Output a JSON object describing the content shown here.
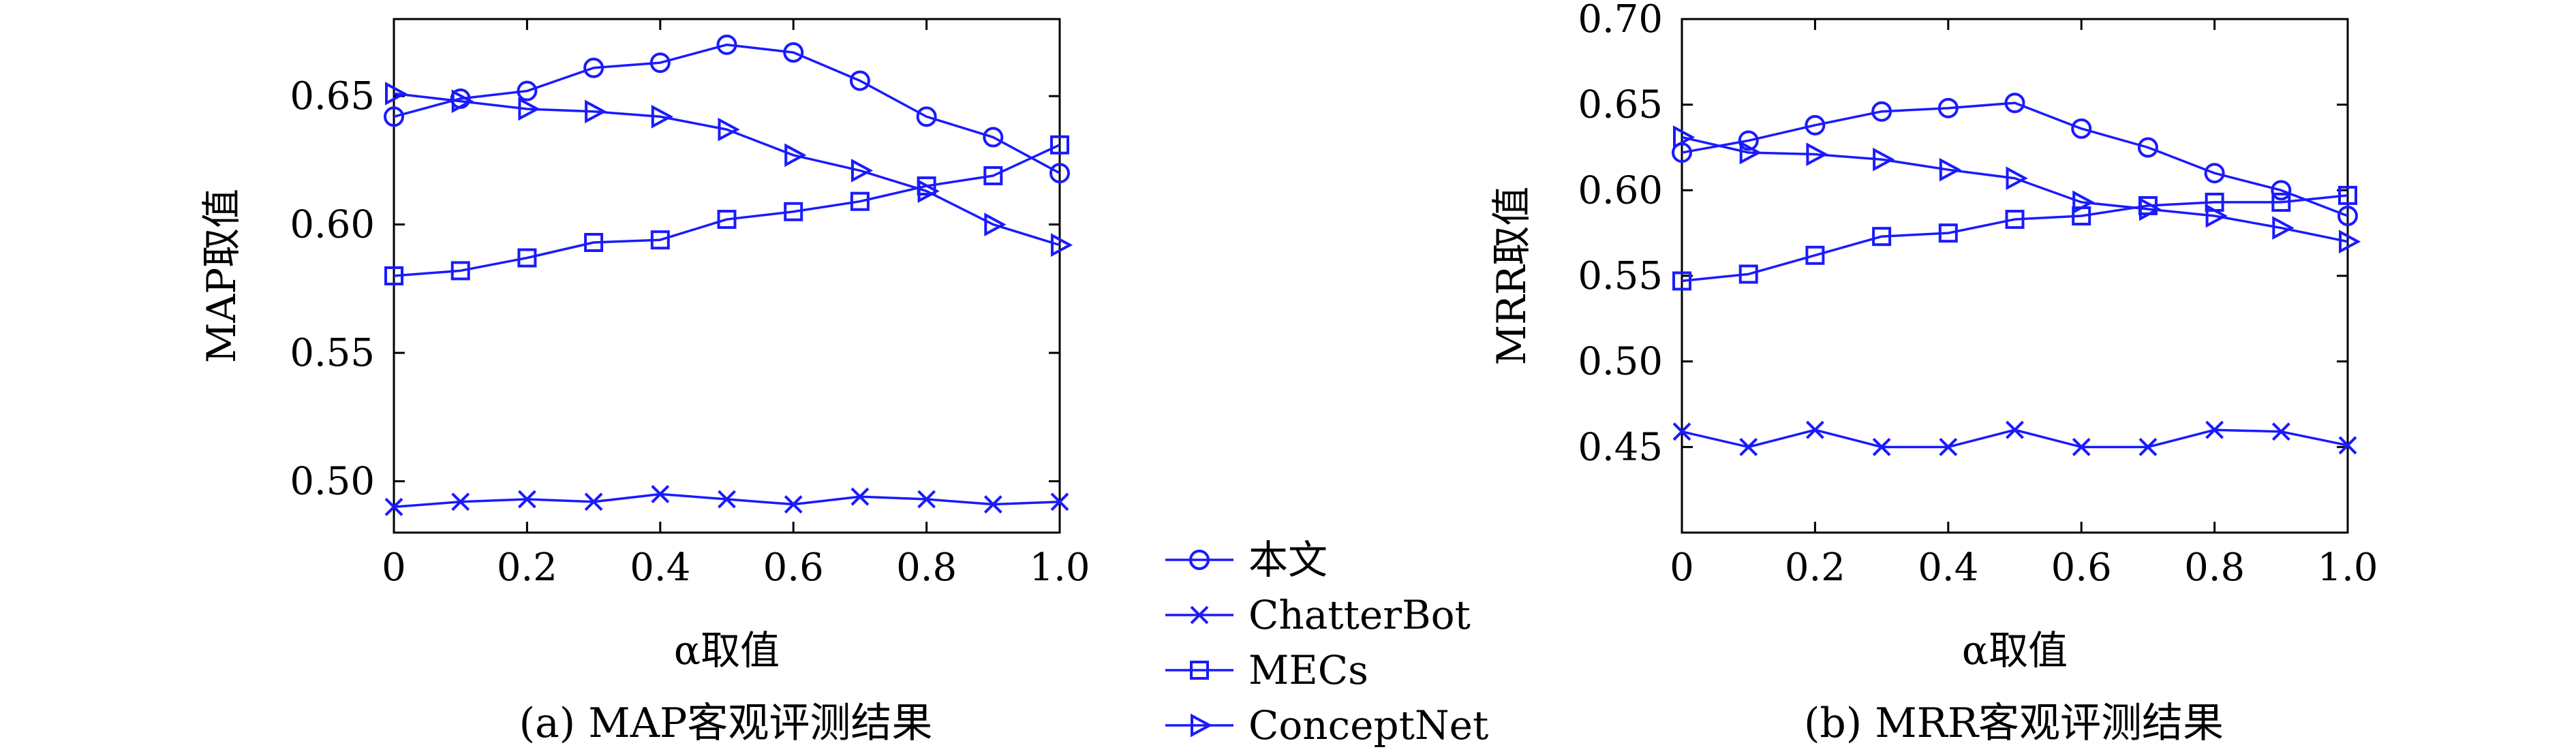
{
  "colors": {
    "series": "#1a1aff",
    "axis": "#000000",
    "background": "#ffffff"
  },
  "legend": {
    "placement": "between-panels-bottom",
    "items": [
      {
        "name": "本文",
        "marker": "circle"
      },
      {
        "name": "ChatterBot",
        "marker": "x"
      },
      {
        "name": "MECs",
        "marker": "square"
      },
      {
        "name": "ConceptNet",
        "marker": "triangle-right"
      }
    ]
  },
  "chart_data": [
    {
      "type": "line",
      "caption": "(a) MAP客观评测结果",
      "xlabel": "α取值",
      "ylabel": "MAP取值",
      "xlim": [
        0,
        1.0
      ],
      "ylim": [
        0.48,
        0.68
      ],
      "xticks": [
        "0",
        "0.2",
        "0.4",
        "0.6",
        "0.8",
        "1.0"
      ],
      "yticks": [
        "0.50",
        "0.55",
        "0.60",
        "0.65"
      ],
      "x": [
        0,
        0.1,
        0.2,
        0.3,
        0.4,
        0.5,
        0.6,
        0.7,
        0.8,
        0.9,
        1.0
      ],
      "grid": false,
      "series": [
        {
          "name": "本文",
          "marker": "circle",
          "values": [
            0.642,
            0.649,
            0.652,
            0.661,
            0.663,
            0.67,
            0.667,
            0.656,
            0.642,
            0.634,
            0.62
          ]
        },
        {
          "name": "ChatterBot",
          "marker": "x",
          "values": [
            0.49,
            0.492,
            0.493,
            0.492,
            0.495,
            0.493,
            0.491,
            0.494,
            0.493,
            0.491,
            0.492
          ]
        },
        {
          "name": "MECs",
          "marker": "square",
          "values": [
            0.58,
            0.582,
            0.587,
            0.593,
            0.594,
            0.602,
            0.605,
            0.609,
            0.615,
            0.619,
            0.631
          ]
        },
        {
          "name": "ConceptNet",
          "marker": "triangle-right",
          "values": [
            0.651,
            0.648,
            0.645,
            0.644,
            0.642,
            0.637,
            0.627,
            0.621,
            0.613,
            0.6,
            0.592
          ]
        }
      ]
    },
    {
      "type": "line",
      "caption": "(b) MRR客观评测结果",
      "xlabel": "α取值",
      "ylabel": "MRR取值",
      "xlim": [
        0,
        1.0
      ],
      "ylim": [
        0.4,
        0.7
      ],
      "xticks": [
        "0",
        "0.2",
        "0.4",
        "0.6",
        "0.8",
        "1.0"
      ],
      "yticks": [
        "0.45",
        "0.50",
        "0.55",
        "0.60",
        "0.65",
        "0.70"
      ],
      "x": [
        0,
        0.1,
        0.2,
        0.3,
        0.4,
        0.5,
        0.6,
        0.7,
        0.8,
        0.9,
        1.0
      ],
      "grid": false,
      "series": [
        {
          "name": "本文",
          "marker": "circle",
          "values": [
            0.622,
            0.629,
            0.638,
            0.646,
            0.648,
            0.651,
            0.636,
            0.625,
            0.61,
            0.6,
            0.585
          ]
        },
        {
          "name": "ChatterBot",
          "marker": "x",
          "values": [
            0.459,
            0.45,
            0.46,
            0.45,
            0.45,
            0.46,
            0.45,
            0.45,
            0.46,
            0.459,
            0.451
          ]
        },
        {
          "name": "MECs",
          "marker": "square",
          "values": [
            0.547,
            0.551,
            0.562,
            0.573,
            0.575,
            0.583,
            0.585,
            0.591,
            0.593,
            0.593,
            0.597
          ]
        },
        {
          "name": "ConceptNet",
          "marker": "triangle-right",
          "values": [
            0.631,
            0.622,
            0.621,
            0.618,
            0.612,
            0.607,
            0.593,
            0.589,
            0.585,
            0.578,
            0.57
          ]
        }
      ]
    }
  ]
}
